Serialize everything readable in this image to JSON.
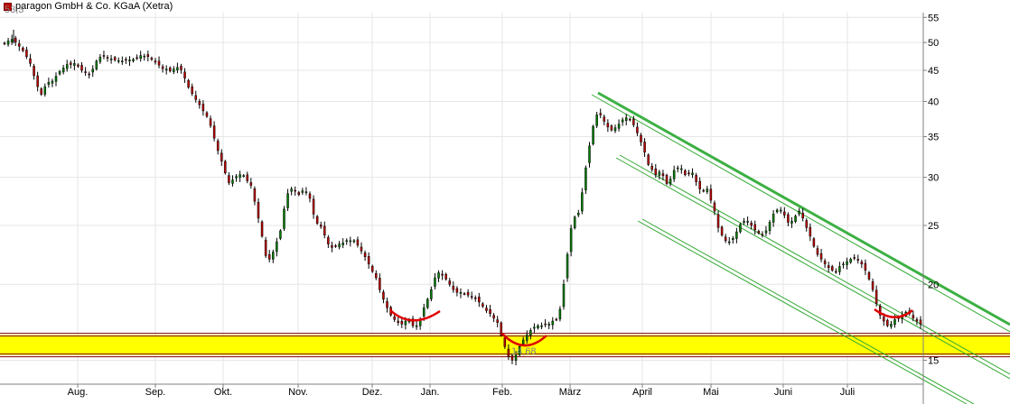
{
  "legend": {
    "label": "paragon GmbH & Co. KGaA (Xetra)",
    "color": "#c00000"
  },
  "colors": {
    "up": "#008000",
    "down": "#c00000",
    "grid": "#e6e6e6",
    "support_zone": "#ffff00",
    "support_lines": "#800000",
    "channel_main": "#3cb043",
    "channel_thin": "#33aa33",
    "bottom_marker": "#e00000"
  },
  "chart_data": {
    "type": "candlestick",
    "y_scale": "log",
    "ylim": [
      13.7,
      56
    ],
    "x_ticks": [
      "Aug.",
      "Sep.",
      "Okt.",
      "Nov.",
      "Dez.",
      "Jan.",
      "Feb.",
      "März",
      "April",
      "Mai",
      "Juni",
      "Juli"
    ],
    "y_ticks": [
      15,
      20,
      25,
      30,
      35,
      40,
      45,
      50,
      55
    ],
    "annotations": {
      "high": "53,3",
      "low": "14,68"
    },
    "support_zone": [
      15.3,
      16.5
    ],
    "closes": [
      49.8,
      50.3,
      50.6,
      50.1,
      49.3,
      48.5,
      47.4,
      46.2,
      44.1,
      42.3,
      41.1,
      42.3,
      43.0,
      43.2,
      44.0,
      44.8,
      45.4,
      46.0,
      46.0,
      46.2,
      45.7,
      45.0,
      44.6,
      44.3,
      45.2,
      46.6,
      47.3,
      47.5,
      47.2,
      47.0,
      46.8,
      46.7,
      46.6,
      46.8,
      46.8,
      46.9,
      47.2,
      47.6,
      47.5,
      47.4,
      46.9,
      46.4,
      45.9,
      45.3,
      45.2,
      44.9,
      45.2,
      45.5,
      45.1,
      43.7,
      42.2,
      41.2,
      40.3,
      39.5,
      38.6,
      37.8,
      36.5,
      34.8,
      33.2,
      31.9,
      30.5,
      29.4,
      29.7,
      30.1,
      30.3,
      30.2,
      29.6,
      29.1,
      27.4,
      25.7,
      24.0,
      22.3,
      22.0,
      22.6,
      23.5,
      24.5,
      26.6,
      28.2,
      28.7,
      28.5,
      28.1,
      28.5,
      28.4,
      27.7,
      26.1,
      25.2,
      24.9,
      24.1,
      23.3,
      23.0,
      23.1,
      23.3,
      23.4,
      23.6,
      23.6,
      23.6,
      23.2,
      22.7,
      22.2,
      21.6,
      21.0,
      20.5,
      19.6,
      18.9,
      18.3,
      17.8,
      17.5,
      17.3,
      17.2,
      17.4,
      17.5,
      17.1,
      17.1,
      17.5,
      18.3,
      18.9,
      19.6,
      20.5,
      20.9,
      20.7,
      20.4,
      20.0,
      19.6,
      19.4,
      19.4,
      19.3,
      19.2,
      19.1,
      19.0,
      18.7,
      18.4,
      18.1,
      17.9,
      17.6,
      17.3,
      16.5,
      15.8,
      15.2,
      15.0,
      15.3,
      15.8,
      16.2,
      16.5,
      16.8,
      17.0,
      17.1,
      17.1,
      17.2,
      17.2,
      17.4,
      17.5,
      18.2,
      20.0,
      22.4,
      24.7,
      25.8,
      26.2,
      28.3,
      31.1,
      33.8,
      36.4,
      38.0,
      38.0,
      37.1,
      36.3,
      35.9,
      36.2,
      36.7,
      37.3,
      37.6,
      37.3,
      36.6,
      35.5,
      34.3,
      33.0,
      31.5,
      30.9,
      30.3,
      30.6,
      30.2,
      29.3,
      29.8,
      30.8,
      31.1,
      31.0,
      30.3,
      30.4,
      30.5,
      29.5,
      28.7,
      28.5,
      28.7,
      27.5,
      26.4,
      24.8,
      24.1,
      23.6,
      23.5,
      23.8,
      24.4,
      25.1,
      25.4,
      25.4,
      25.0,
      24.6,
      24.3,
      24.1,
      24.5,
      25.3,
      26.1,
      26.5,
      26.5,
      26.0,
      25.3,
      25.4,
      25.9,
      26.4,
      25.7,
      24.8,
      24.0,
      23.1,
      22.4,
      22.0,
      21.6,
      21.3,
      21.1,
      21.0,
      21.4,
      21.6,
      21.8,
      22.0,
      22.1,
      21.9,
      21.6,
      21.1,
      20.4,
      19.6,
      18.6,
      17.8,
      17.4,
      17.1,
      17.2,
      17.5,
      17.6,
      17.8,
      18.0,
      17.9,
      17.6,
      17.4,
      17.2
    ]
  }
}
